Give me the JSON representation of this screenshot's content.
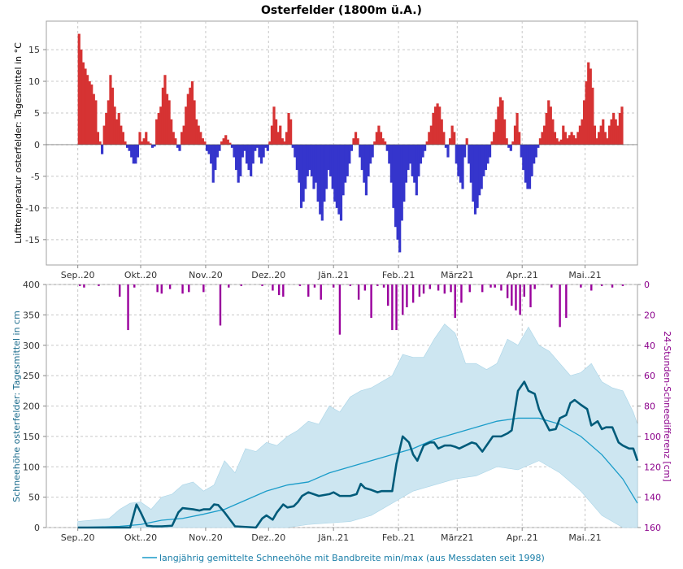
{
  "chart_data": [
    {
      "type": "bar",
      "title": "Osterfelder (1800m ü.A.)",
      "ylabel": "Lufttemperatur osterfelder: Tagesmittel in °C",
      "ylim": [
        -19,
        19.5
      ],
      "yticks": [
        15,
        10,
        5,
        0,
        -5,
        -10,
        -15
      ],
      "months": [
        "Sep..20",
        "Okt..20",
        "Nov..20",
        "Dez..20",
        "Jän..21",
        "Feb..21",
        "März21",
        "Apr..21",
        "Mai..21"
      ],
      "x_start_day": 0,
      "x_end_day": 267,
      "colors": {
        "positive": "#d63333",
        "negative": "#3535cc"
      },
      "series": [
        {
          "name": "Tagesmittel Lufttemperatur",
          "values": [
            17.5,
            15,
            13,
            12,
            11,
            10,
            9.5,
            8,
            7,
            2,
            0.5,
            -1.5,
            3,
            5,
            7,
            11,
            9,
            6,
            4,
            5,
            3,
            2,
            0.5,
            -0.5,
            -1,
            -2,
            -3,
            -3,
            -2,
            2,
            0.5,
            1,
            2,
            0.5,
            0.2,
            -0.5,
            -0.3,
            4,
            5,
            6,
            9,
            11,
            8,
            7,
            4,
            2,
            1,
            -0.5,
            -1,
            2,
            3,
            6,
            8,
            9,
            10,
            7,
            4,
            3,
            2,
            1,
            0.5,
            -1,
            -1.5,
            -3,
            -6,
            -4,
            -2,
            -1,
            0.5,
            1,
            1.5,
            0.8,
            0.3,
            -0.5,
            -2,
            -4,
            -6,
            -5,
            -2,
            -1,
            -3,
            -4,
            -5,
            -3,
            -1,
            -0.5,
            -2,
            -3,
            -2,
            -0.5,
            -1,
            0.5,
            3,
            6,
            4,
            2,
            3,
            1,
            0.5,
            2,
            5,
            4,
            -0.5,
            -2,
            -4,
            -6,
            -10,
            -9,
            -7,
            -5,
            -4,
            -5,
            -7,
            -6,
            -9,
            -11,
            -12,
            -9,
            -7,
            -4,
            -5,
            -7,
            -9,
            -10,
            -11,
            -12,
            -8,
            -6,
            -5,
            -3,
            -1,
            1,
            2,
            1,
            -2,
            -4,
            -6,
            -8,
            -5,
            -3,
            -2,
            0.5,
            2,
            3,
            2,
            1,
            0.5,
            -1,
            -3,
            -6,
            -10,
            -13,
            -15,
            -17,
            -12,
            -9,
            -6,
            -4,
            -3,
            -5,
            -6,
            -8,
            -5,
            -3,
            -2,
            -1,
            0.5,
            2,
            3,
            5,
            6,
            6.5,
            6,
            4,
            2,
            -0.5,
            -2,
            1,
            3,
            2,
            -3,
            -5,
            -6,
            -7,
            -2,
            1,
            -3,
            -6,
            -9,
            -11,
            -10,
            -8,
            -7,
            -5,
            -4,
            -3,
            -2,
            0.5,
            2,
            4,
            6,
            7.5,
            7,
            4,
            1,
            -0.5,
            -1,
            0.5,
            3,
            5,
            2,
            -2,
            -4,
            -6,
            -7,
            -7,
            -5,
            -3,
            -2,
            -0.5,
            1,
            2,
            3,
            5,
            7,
            6,
            4,
            2,
            1,
            0.5,
            0.8,
            3,
            2,
            1,
            1.5,
            2,
            1.5,
            1,
            2,
            3,
            4,
            7,
            10,
            13,
            12,
            9,
            3,
            1,
            2,
            3,
            4,
            2,
            1,
            3,
            4,
            5,
            4,
            3,
            5,
            6
          ]
        }
      ]
    },
    {
      "type": "line",
      "ylabel_left": "Schneehöhe osterfelder: Tagesmittel in cm",
      "ylabel_right": "24-Stunden-Schneedifferenz [cm]",
      "ylim_left": [
        0,
        400
      ],
      "yticks_left": [
        0,
        50,
        100,
        150,
        200,
        250,
        300,
        350,
        400
      ],
      "ylim_right": [
        160,
        0
      ],
      "yticks_right": [
        0,
        20,
        40,
        60,
        80,
        100,
        120,
        140,
        160
      ],
      "months": [
        "Sep..20",
        "Okt..20",
        "Nov..20",
        "Dez..20",
        "Jän..21",
        "Feb..21",
        "März21",
        "Apr..21",
        "Mai..21"
      ],
      "legend": "langjährig gemittelte Schneehöhe mit Bandbreite min/max (aus Messdaten seit 1998)",
      "series": [
        {
          "name": "Schneehöhe Tagesmittel",
          "color": "#005b7a",
          "days": [
            0,
            15,
            20,
            25,
            28,
            30,
            33,
            36,
            40,
            45,
            48,
            50,
            55,
            58,
            60,
            63,
            65,
            67,
            70,
            75,
            85,
            88,
            90,
            93,
            95,
            98,
            100,
            103,
            105,
            107,
            110,
            115,
            120,
            122,
            125,
            128,
            130,
            133,
            135,
            137,
            140,
            143,
            145,
            148,
            150,
            152,
            155,
            158,
            160,
            162,
            165,
            168,
            170,
            172,
            175,
            178,
            180,
            182,
            185,
            188,
            190,
            193,
            195,
            198,
            200,
            202,
            205,
            207,
            210,
            213,
            215,
            218,
            220,
            222,
            225,
            228,
            230,
            233,
            235,
            237,
            240,
            243,
            245,
            248,
            250,
            252,
            255,
            258,
            260,
            263,
            265,
            267
          ],
          "values": [
            0,
            0,
            0,
            0,
            38,
            25,
            3,
            2,
            2,
            3,
            25,
            32,
            30,
            28,
            30,
            30,
            38,
            37,
            25,
            2,
            0,
            15,
            20,
            13,
            25,
            38,
            33,
            35,
            42,
            52,
            58,
            52,
            55,
            58,
            52,
            52,
            52,
            55,
            72,
            65,
            62,
            58,
            60,
            60,
            60,
            105,
            150,
            140,
            120,
            110,
            135,
            140,
            140,
            130,
            135,
            135,
            133,
            130,
            135,
            140,
            138,
            125,
            135,
            150,
            150,
            150,
            155,
            160,
            225,
            240,
            225,
            220,
            195,
            180,
            160,
            162,
            180,
            185,
            205,
            210,
            202,
            195,
            168,
            175,
            162,
            165,
            165,
            140,
            135,
            130,
            130,
            110
          ]
        },
        {
          "name": "langjähriger Mittelwert",
          "color": "#1a9cc9",
          "days": [
            0,
            20,
            30,
            40,
            50,
            60,
            70,
            80,
            90,
            100,
            110,
            120,
            130,
            140,
            150,
            160,
            170,
            180,
            190,
            200,
            210,
            220,
            230,
            240,
            250,
            260,
            267
          ],
          "values": [
            0,
            2,
            5,
            12,
            15,
            22,
            30,
            45,
            60,
            70,
            75,
            90,
            100,
            110,
            120,
            130,
            145,
            155,
            165,
            175,
            180,
            180,
            170,
            150,
            120,
            80,
            40
          ]
        },
        {
          "name": "Bandbreite max",
          "color": "#cde6f1",
          "days": [
            0,
            15,
            20,
            25,
            30,
            35,
            40,
            45,
            50,
            55,
            60,
            65,
            70,
            75,
            80,
            85,
            90,
            95,
            100,
            105,
            110,
            115,
            120,
            125,
            130,
            135,
            140,
            145,
            150,
            155,
            160,
            165,
            170,
            175,
            180,
            185,
            190,
            195,
            200,
            205,
            210,
            215,
            220,
            225,
            230,
            235,
            240,
            245,
            250,
            255,
            260,
            265,
            267
          ],
          "values": [
            10,
            15,
            30,
            40,
            42,
            30,
            50,
            55,
            70,
            75,
            60,
            70,
            110,
            90,
            130,
            125,
            140,
            135,
            150,
            160,
            175,
            170,
            200,
            190,
            215,
            225,
            230,
            240,
            250,
            285,
            280,
            280,
            310,
            335,
            320,
            270,
            270,
            260,
            270,
            310,
            300,
            330,
            300,
            290,
            270,
            250,
            255,
            270,
            240,
            230,
            225,
            190,
            170
          ]
        },
        {
          "name": "Bandbreite min",
          "days": [
            0,
            100,
            110,
            130,
            140,
            150,
            160,
            170,
            180,
            190,
            200,
            210,
            220,
            230,
            240,
            250,
            260,
            267
          ],
          "values": [
            0,
            0,
            5,
            10,
            20,
            40,
            60,
            70,
            80,
            85,
            100,
            95,
            110,
            90,
            60,
            20,
            0,
            0
          ]
        }
      ],
      "snow_diff": {
        "name": "24-Stunden-Schneedifferenz",
        "color": "#99009c",
        "days": [
          1,
          3,
          10,
          20,
          24,
          27,
          38,
          40,
          44,
          50,
          53,
          60,
          68,
          72,
          78,
          88,
          93,
          96,
          98,
          106,
          110,
          113,
          116,
          122,
          125,
          130,
          134,
          137,
          140,
          143,
          146,
          148,
          150,
          152,
          155,
          157,
          160,
          163,
          165,
          168,
          172,
          175,
          178,
          180,
          183,
          187,
          193,
          197,
          199,
          202,
          205,
          207,
          209,
          211,
          213,
          216,
          218,
          226,
          230,
          233,
          240,
          245,
          250,
          255,
          260
        ],
        "values": [
          1,
          2,
          1,
          8,
          30,
          2,
          5,
          6,
          3,
          6,
          5,
          5,
          27,
          2,
          1,
          1,
          4,
          7,
          8,
          1,
          8,
          2,
          10,
          2,
          33,
          1,
          10,
          4,
          22,
          1,
          2,
          14,
          30,
          30,
          20,
          15,
          12,
          8,
          6,
          3,
          4,
          6,
          5,
          22,
          12,
          5,
          5,
          2,
          2,
          4,
          9,
          14,
          17,
          20,
          8,
          15,
          3,
          2,
          28,
          22,
          2,
          4,
          1,
          2,
          1
        ]
      }
    }
  ]
}
